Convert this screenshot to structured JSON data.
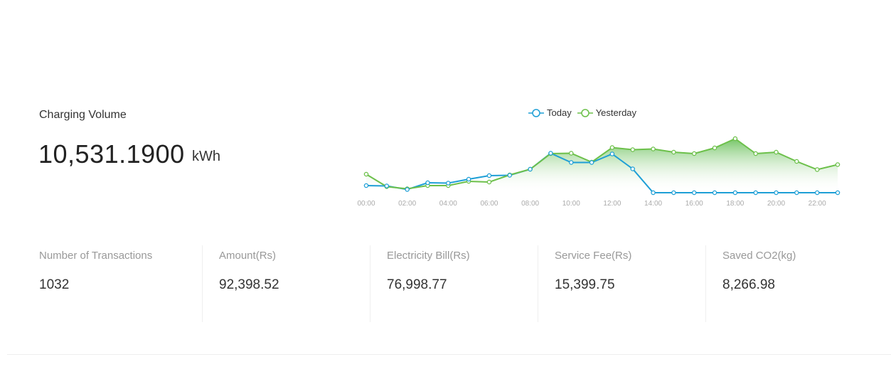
{
  "charging": {
    "title": "Charging Volume",
    "value": "10,531.1900",
    "unit": "kWh"
  },
  "legend": {
    "today": "Today",
    "yesterday": "Yesterday"
  },
  "colors": {
    "today": "#1e9fd6",
    "yesterday": "#6cc04a",
    "area_fill": "#7fcf6a"
  },
  "chart_data": {
    "type": "line",
    "x_ticks": [
      "00:00",
      "02:00",
      "04:00",
      "06:00",
      "08:00",
      "10:00",
      "12:00",
      "14:00",
      "16:00",
      "18:00",
      "20:00",
      "22:00"
    ],
    "x": [
      0,
      1,
      2,
      3,
      4,
      5,
      6,
      7,
      8,
      9,
      10,
      11,
      12,
      13,
      14,
      15,
      16,
      17,
      18,
      19,
      20,
      21,
      22,
      23
    ],
    "series": [
      {
        "name": "Today",
        "values": [
          10,
          9.5,
          4.5,
          14,
          13.5,
          19,
          24,
          24.5,
          33,
          55.5,
          42.5,
          42.5,
          54.5,
          33.5,
          0,
          0,
          0,
          0,
          0,
          0,
          0,
          0,
          0,
          0
        ]
      },
      {
        "name": "Yesterday",
        "values": [
          26,
          8.5,
          5.5,
          10,
          10,
          16,
          15,
          25,
          33,
          55,
          55.5,
          43,
          63.5,
          60.5,
          61.5,
          57,
          55,
          63,
          76,
          55,
          57,
          44,
          32.5,
          39.5
        ]
      }
    ],
    "area_series": "Yesterday",
    "ylim": [
      0,
      80
    ]
  },
  "stats": [
    {
      "label": "Number of Transactions",
      "value": "1032"
    },
    {
      "label": "Amount(Rs)",
      "value": "92,398.52"
    },
    {
      "label": "Electricity Bill(Rs)",
      "value": "76,998.77"
    },
    {
      "label": "Service Fee(Rs)",
      "value": "15,399.75"
    },
    {
      "label": "Saved CO2(kg)",
      "value": "8,266.98"
    }
  ]
}
